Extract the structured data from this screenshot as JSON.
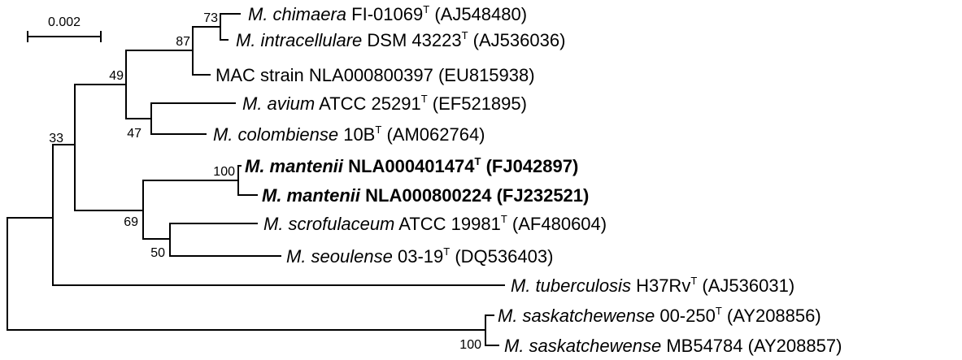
{
  "scale_bar": {
    "label": "0.002"
  },
  "taxa": [
    {
      "species": "M. chimaera",
      "strain": "FI-01069",
      "type_strain": true,
      "accession": "(AJ548480)",
      "bold": false
    },
    {
      "species": "M. intracellulare",
      "strain": "DSM 43223",
      "type_strain": true,
      "accession": "(AJ536036)",
      "bold": false
    },
    {
      "species": "",
      "strain": "MAC strain NLA000800397",
      "type_strain": false,
      "accession": "(EU815938)",
      "bold": false
    },
    {
      "species": "M. avium",
      "strain": "ATCC 25291",
      "type_strain": true,
      "accession": "(EF521895)",
      "bold": false
    },
    {
      "species": "M. colombiense",
      "strain": "10B",
      "type_strain": true,
      "accession": "(AM062764)",
      "bold": false
    },
    {
      "species": "M. mantenii",
      "strain": "NLA000401474",
      "type_strain": true,
      "accession": "(FJ042897)",
      "bold": true
    },
    {
      "species": "M. mantenii",
      "strain": "NLA000800224",
      "type_strain": false,
      "accession": "(FJ232521)",
      "bold": true
    },
    {
      "species": "M. scrofulaceum",
      "strain": "ATCC 19981",
      "type_strain": true,
      "accession": "(AF480604)",
      "bold": false
    },
    {
      "species": "M. seoulense",
      "strain": "03-19",
      "type_strain": true,
      "accession": "(DQ536403)",
      "bold": false
    },
    {
      "species": "M. tuberculosis",
      "strain": "H37Rv",
      "type_strain": true,
      "accession": "(AJ536031)",
      "bold": false
    },
    {
      "species": "M. saskatchewense",
      "strain": "00-250",
      "type_strain": true,
      "accession": "(AY208856)",
      "bold": false
    },
    {
      "species": "M. saskatchewense",
      "strain": "MB54784",
      "type_strain": false,
      "accession": "(AY208857)",
      "bold": false
    }
  ],
  "type_strain_mark": "T",
  "bootstrap": {
    "chimaera_intracellulare": "73",
    "chimaera_intracellulare_mac": "87",
    "mac_group": "49",
    "avium_colombiense": "47",
    "ingroup": "33",
    "mantenii": "100",
    "mantenii_scrofulaceum_seoulense": "69",
    "scrofulaceum_seoulense": "50",
    "saskatchewense": "100"
  }
}
